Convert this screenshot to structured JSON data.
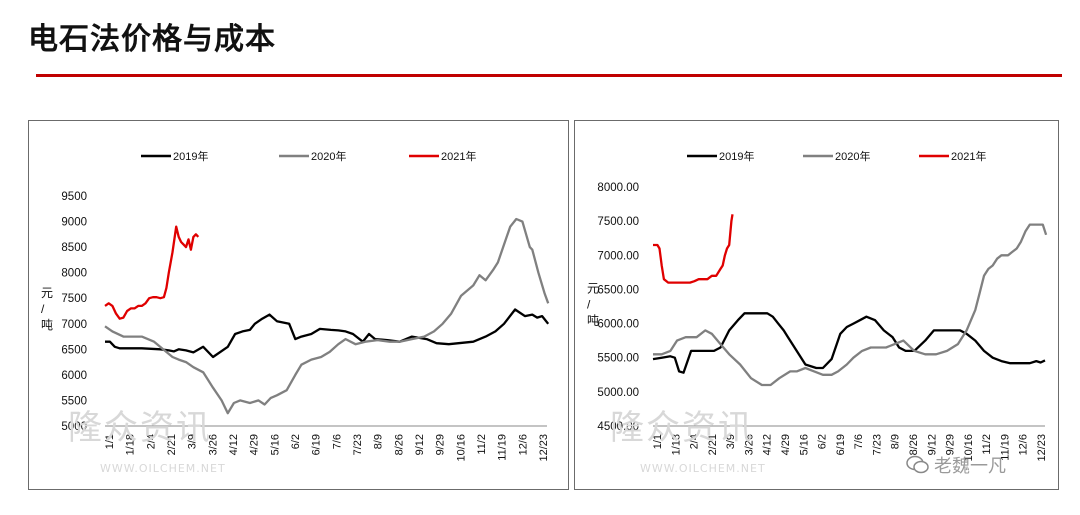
{
  "page_title": "电石法价格与成本",
  "watermark": {
    "brand": "隆众资讯",
    "url": "WWW.OILCHEM.NET",
    "wechat": "老魏一凡"
  },
  "colors": {
    "accent": "#c00000",
    "s2019": "#000000",
    "s2020": "#808080",
    "s2021": "#e00000"
  },
  "chart_data": [
    {
      "type": "line",
      "ylabel": "元/吨",
      "ylim": [
        5000,
        9500
      ],
      "yticks": [
        "9500",
        "9000",
        "8500",
        "8000",
        "7500",
        "7000",
        "6500",
        "6000",
        "5500",
        "5000"
      ],
      "xticks": [
        "1/1",
        "1/18",
        "2/4",
        "2/21",
        "3/9",
        "3/26",
        "4/12",
        "4/29",
        "5/16",
        "6/2",
        "6/19",
        "7/6",
        "7/23",
        "8/9",
        "8/26",
        "9/12",
        "9/29",
        "10/16",
        "11/2",
        "11/19",
        "12/6",
        "12/23"
      ],
      "xlim": [
        0,
        360
      ],
      "legend_position": "top",
      "series": [
        {
          "name": "2019年",
          "x": [
            0,
            4,
            8,
            12,
            30,
            45,
            52,
            56,
            60,
            66,
            72,
            80,
            88,
            100,
            106,
            112,
            118,
            122,
            128,
            134,
            140,
            150,
            155,
            160,
            168,
            175,
            184,
            190,
            196,
            202,
            210,
            215,
            220,
            230,
            240,
            250,
            262,
            270,
            280,
            288,
            300,
            310,
            318,
            325,
            334,
            342,
            348,
            352,
            356,
            361
          ],
          "y": [
            6650,
            6650,
            6550,
            6520,
            6520,
            6500,
            6480,
            6460,
            6500,
            6480,
            6440,
            6550,
            6350,
            6550,
            6800,
            6850,
            6880,
            7000,
            7100,
            7180,
            7050,
            7000,
            6700,
            6750,
            6800,
            6900,
            6880,
            6870,
            6850,
            6800,
            6650,
            6800,
            6700,
            6680,
            6650,
            6750,
            6700,
            6620,
            6600,
            6620,
            6650,
            6750,
            6850,
            7000,
            7280,
            7150,
            7180,
            7120,
            7150,
            7000
          ]
        },
        {
          "name": "2020年",
          "x": [
            0,
            6,
            15,
            30,
            40,
            55,
            60,
            66,
            72,
            80,
            88,
            95,
            100,
            105,
            110,
            118,
            125,
            130,
            135,
            140,
            148,
            155,
            160,
            168,
            176,
            183,
            190,
            196,
            204,
            212,
            222,
            232,
            240,
            250,
            260,
            268,
            275,
            282,
            290,
            300,
            305,
            310,
            316,
            320,
            325,
            330,
            335,
            340,
            346,
            348,
            353,
            358,
            361
          ],
          "y": [
            6950,
            6850,
            6750,
            6750,
            6650,
            6350,
            6300,
            6250,
            6150,
            6050,
            5750,
            5500,
            5250,
            5450,
            5500,
            5450,
            5500,
            5420,
            5550,
            5600,
            5700,
            6000,
            6200,
            6300,
            6350,
            6450,
            6600,
            6700,
            6600,
            6650,
            6680,
            6650,
            6650,
            6700,
            6750,
            6850,
            7000,
            7200,
            7550,
            7750,
            7950,
            7850,
            8050,
            8200,
            8550,
            8900,
            9050,
            9000,
            8500,
            8450,
            8000,
            7600,
            7400
          ]
        },
        {
          "name": "2021年",
          "x": [
            0,
            3,
            6,
            9,
            12,
            15,
            18,
            21,
            24,
            27,
            30,
            33,
            36,
            39,
            42,
            45,
            48,
            50,
            52,
            55,
            58,
            60,
            62,
            64,
            66,
            68,
            70,
            72,
            74,
            76
          ],
          "y": [
            7350,
            7400,
            7350,
            7200,
            7100,
            7120,
            7250,
            7300,
            7300,
            7350,
            7350,
            7400,
            7500,
            7520,
            7520,
            7500,
            7520,
            7700,
            8000,
            8400,
            8900,
            8700,
            8600,
            8550,
            8500,
            8650,
            8450,
            8700,
            8750,
            8700
          ]
        }
      ]
    },
    {
      "type": "line",
      "ylabel": "元/吨",
      "ylim": [
        4500,
        8000
      ],
      "yticks": [
        "8000.00",
        "7500.00",
        "7000.00",
        "6500.00",
        "6000.00",
        "5500.00",
        "5000.00",
        "4500.00"
      ],
      "xticks": [
        "1/1",
        "1/18",
        "2/4",
        "2/21",
        "3/9",
        "3/26",
        "4/12",
        "4/29",
        "5/16",
        "6/2",
        "6/19",
        "7/6",
        "7/23",
        "8/9",
        "8/26",
        "9/12",
        "9/29",
        "10/16",
        "11/2",
        "11/19",
        "12/6",
        "12/23"
      ],
      "xlim": [
        0,
        360
      ],
      "legend_position": "top",
      "series": [
        {
          "name": "2019年",
          "x": [
            0,
            8,
            16,
            20,
            24,
            28,
            35,
            44,
            56,
            62,
            70,
            78,
            84,
            92,
            100,
            105,
            110,
            115,
            120,
            124,
            128,
            132,
            140,
            150,
            156,
            164,
            172,
            178,
            184,
            190,
            196,
            204,
            212,
            220,
            226,
            232,
            240,
            250,
            258,
            265,
            270,
            275,
            282,
            288,
            296,
            304,
            312,
            320,
            328,
            336,
            342,
            346,
            352,
            356,
            360
          ],
          "y": [
            5480,
            5500,
            5520,
            5500,
            5300,
            5280,
            5600,
            5600,
            5600,
            5650,
            5900,
            6050,
            6150,
            6150,
            6150,
            6150,
            6100,
            6000,
            5900,
            5800,
            5700,
            5600,
            5400,
            5350,
            5350,
            5480,
            5850,
            5950,
            6000,
            6050,
            6100,
            6050,
            5900,
            5800,
            5650,
            5600,
            5600,
            5750,
            5900,
            5900,
            5900,
            5900,
            5900,
            5850,
            5750,
            5600,
            5500,
            5450,
            5420,
            5420,
            5420,
            5420,
            5450,
            5430,
            5460
          ]
        },
        {
          "name": "2020年",
          "x": [
            0,
            8,
            16,
            22,
            30,
            40,
            48,
            54,
            62,
            70,
            80,
            90,
            100,
            108,
            116,
            126,
            132,
            140,
            148,
            156,
            164,
            170,
            178,
            184,
            192,
            200,
            208,
            214,
            222,
            230,
            240,
            250,
            260,
            270,
            280,
            288,
            296,
            300,
            304,
            308,
            312,
            316,
            320,
            326,
            330,
            334,
            338,
            342,
            346,
            350,
            354,
            358,
            361
          ],
          "y": [
            5550,
            5550,
            5600,
            5750,
            5800,
            5800,
            5900,
            5850,
            5700,
            5550,
            5400,
            5200,
            5100,
            5100,
            5200,
            5300,
            5300,
            5350,
            5300,
            5250,
            5250,
            5300,
            5400,
            5500,
            5600,
            5650,
            5650,
            5650,
            5700,
            5750,
            5600,
            5550,
            5550,
            5600,
            5700,
            5900,
            6200,
            6450,
            6700,
            6800,
            6850,
            6950,
            7000,
            7000,
            7050,
            7100,
            7200,
            7350,
            7450,
            7450,
            7450,
            7450,
            7300
          ]
        },
        {
          "name": "2021年",
          "x": [
            0,
            4,
            6,
            8,
            10,
            14,
            18,
            22,
            26,
            30,
            34,
            38,
            42,
            46,
            50,
            54,
            58,
            62,
            64,
            66,
            68,
            70,
            72,
            73
          ],
          "y": [
            7150,
            7150,
            7100,
            6850,
            6650,
            6600,
            6600,
            6600,
            6600,
            6600,
            6600,
            6620,
            6650,
            6650,
            6650,
            6700,
            6700,
            6800,
            6850,
            7000,
            7100,
            7150,
            7500,
            7600
          ]
        }
      ]
    }
  ]
}
